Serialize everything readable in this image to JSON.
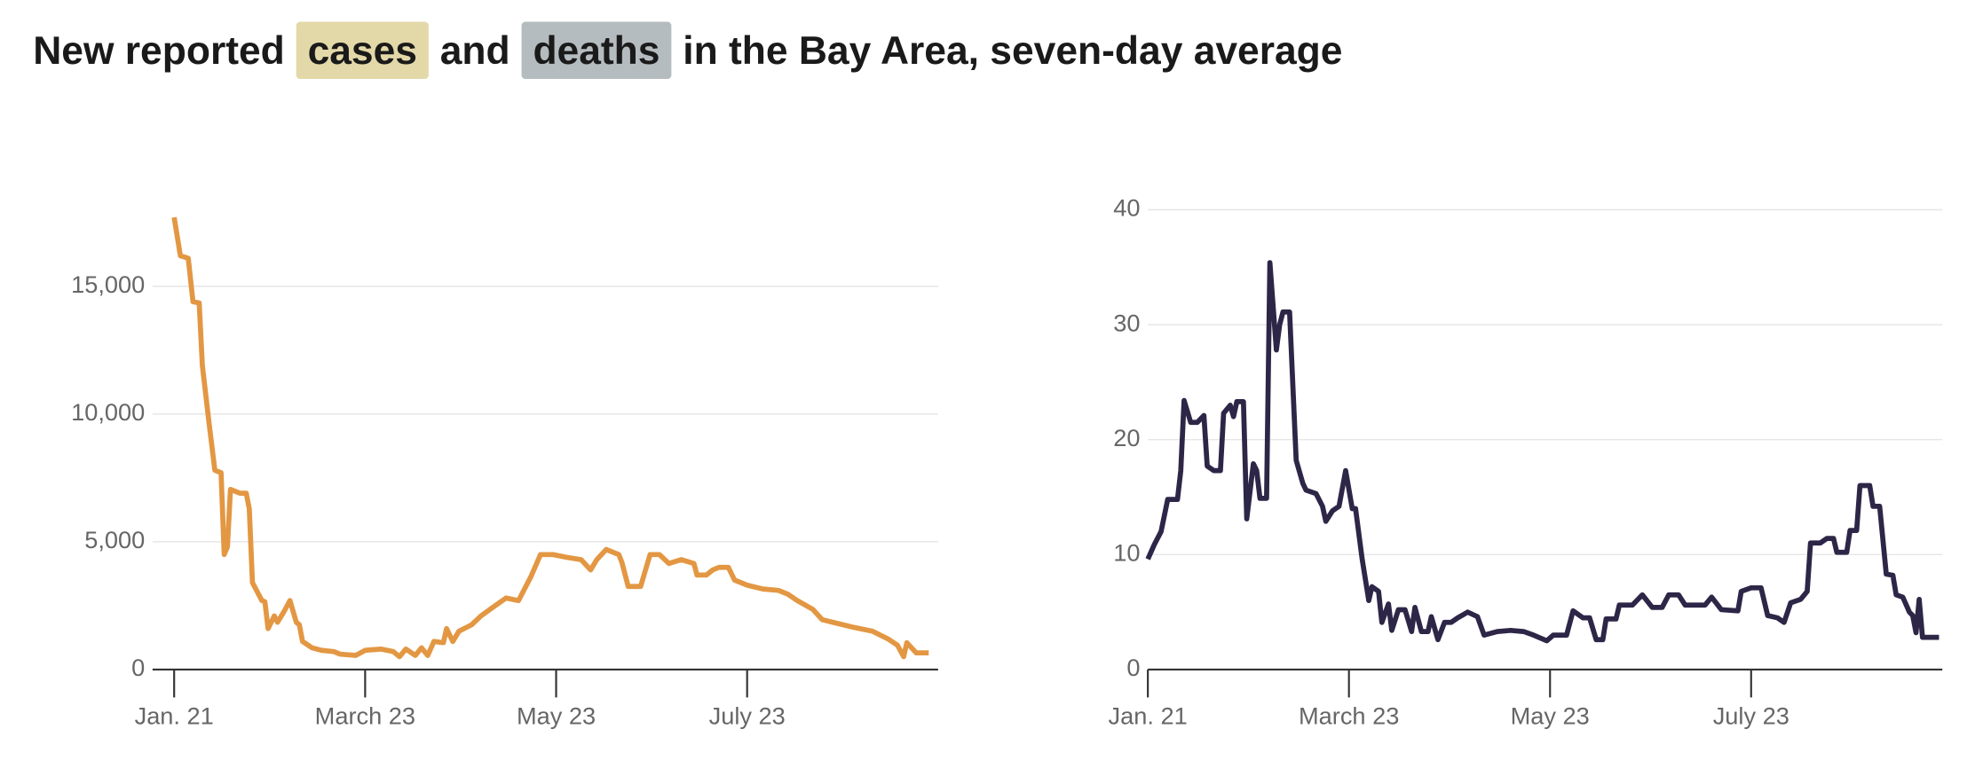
{
  "title_parts": [
    {
      "text": "New reported"
    },
    {
      "text": "cases",
      "highlight": "#e3d8a8"
    },
    {
      "text": "and"
    },
    {
      "text": "deaths",
      "highlight": "#b5bcbf"
    },
    {
      "text": "in the Bay Area, seven-day average"
    }
  ],
  "chart_data": [
    {
      "type": "line",
      "color": "#e39743",
      "xlim": [
        0,
        244
      ],
      "ylim": [
        0,
        18000
      ],
      "xticks": [
        {
          "value": 0,
          "label": "Jan. 21"
        },
        {
          "value": 61,
          "label": "March 23"
        },
        {
          "value": 122,
          "label": "May 23"
        },
        {
          "value": 183,
          "label": "July 23"
        }
      ],
      "yticks": [
        0,
        {
          "value": 5000,
          "label": "5,000"
        },
        {
          "value": 10000,
          "label": "10,000"
        },
        {
          "value": 15000,
          "label": "15,000"
        }
      ],
      "grid": true,
      "x": [
        0,
        2,
        4.5,
        6,
        8,
        9,
        11,
        13,
        15,
        16,
        17,
        18,
        21,
        23,
        24,
        25,
        28,
        29,
        30,
        32,
        33,
        35,
        37,
        39,
        40,
        41,
        44,
        47,
        51,
        53,
        58,
        61,
        66,
        70,
        72,
        74,
        77,
        79,
        81,
        83,
        86,
        87,
        89,
        91,
        95,
        98,
        102,
        106,
        110,
        114,
        117,
        121,
        125,
        130,
        133,
        135,
        138,
        142,
        143,
        145,
        149,
        152,
        155,
        158,
        162,
        166,
        167,
        170,
        172,
        174,
        177,
        179,
        183,
        188,
        193,
        196,
        199,
        204,
        207,
        212,
        217,
        223,
        228,
        231,
        233,
        234,
        237,
        241
      ],
      "values": [
        17700,
        16200,
        16100,
        14400,
        14350,
        11900,
        9800,
        7800,
        7700,
        4500,
        4800,
        7050,
        6900,
        6900,
        6300,
        3400,
        2700,
        2650,
        1600,
        2100,
        1850,
        2250,
        2700,
        1850,
        1750,
        1100,
        850,
        750,
        700,
        600,
        550,
        750,
        800,
        700,
        500,
        800,
        550,
        850,
        550,
        1100,
        1050,
        1600,
        1100,
        1500,
        1750,
        2100,
        2450,
        2800,
        2700,
        3650,
        4500,
        4500,
        4400,
        4300,
        3900,
        4300,
        4700,
        4500,
        4200,
        3250,
        3250,
        4500,
        4500,
        4150,
        4300,
        4150,
        3700,
        3700,
        3900,
        4000,
        4000,
        3500,
        3300,
        3150,
        3100,
        2950,
        2700,
        2350,
        1950,
        1800,
        1650,
        1500,
        1200,
        950,
        500,
        1050,
        650,
        650
      ]
    },
    {
      "type": "line",
      "color": "#2e2647",
      "xlim": [
        0,
        241
      ],
      "ylim": [
        0,
        40
      ],
      "xticks": [
        {
          "value": 0,
          "label": "Jan. 21"
        },
        {
          "value": 61,
          "label": "March 23"
        },
        {
          "value": 122,
          "label": "May 23"
        },
        {
          "value": 183,
          "label": "July 23"
        }
      ],
      "yticks": [
        0,
        10,
        20,
        30,
        40
      ],
      "grid": true,
      "x": [
        0,
        2,
        4,
        6,
        9,
        10,
        11,
        13,
        15,
        17,
        18,
        20,
        22,
        23,
        25,
        26,
        27,
        29,
        30,
        32,
        33,
        34,
        36,
        37,
        39,
        40,
        41,
        43,
        45,
        47,
        48,
        51,
        53,
        54,
        56,
        58,
        60,
        62,
        63,
        65,
        67,
        68,
        70,
        71,
        73,
        74,
        76,
        78,
        80,
        81,
        83,
        85,
        86,
        88,
        90,
        92,
        94,
        97,
        100,
        102,
        106,
        110,
        114,
        117,
        121,
        123,
        127,
        129,
        132,
        134,
        136,
        138,
        139,
        142,
        143,
        147,
        150,
        153,
        156,
        158,
        161,
        163,
        169,
        171,
        174,
        179,
        180,
        183,
        186,
        188,
        191,
        193,
        195,
        198,
        200,
        201,
        204,
        206,
        208,
        209,
        212,
        213,
        215,
        216,
        219,
        220,
        222,
        224,
        226,
        227,
        229,
        231,
        232,
        233,
        234,
        235,
        240
      ],
      "values": [
        9.6,
        10.9,
        12,
        14.8,
        14.8,
        17.3,
        23.4,
        21.5,
        21.5,
        22.1,
        17.7,
        17.3,
        17.3,
        22.3,
        23,
        22,
        23.3,
        23.3,
        13.1,
        17.9,
        17.3,
        14.9,
        14.9,
        35.4,
        27.8,
        30,
        31.1,
        31.1,
        18.2,
        16.2,
        15.6,
        15.3,
        14.2,
        12.9,
        13.8,
        14.2,
        17.3,
        14,
        14,
        9.6,
        6,
        7.2,
        6.8,
        4.1,
        5.7,
        3.4,
        5.2,
        5.2,
        3.3,
        5.4,
        3.3,
        3.3,
        4.6,
        2.6,
        4.1,
        4.1,
        4.5,
        5,
        4.6,
        3,
        3.3,
        3.4,
        3.3,
        3,
        2.5,
        3,
        3,
        5.1,
        4.5,
        4.5,
        2.6,
        2.6,
        4.4,
        4.4,
        5.6,
        5.6,
        6.5,
        5.4,
        5.4,
        6.5,
        6.5,
        5.6,
        5.6,
        6.3,
        5.2,
        5.1,
        6.8,
        7.1,
        7.1,
        4.7,
        4.5,
        4.1,
        5.8,
        6.1,
        6.8,
        11,
        11,
        11.4,
        11.4,
        10.2,
        10.2,
        12.1,
        12.1,
        16,
        16,
        14.2,
        14.2,
        8.3,
        8.2,
        6.5,
        6.3,
        5,
        4.7,
        3.2,
        6.1,
        2.8,
        2.8
      ]
    }
  ]
}
